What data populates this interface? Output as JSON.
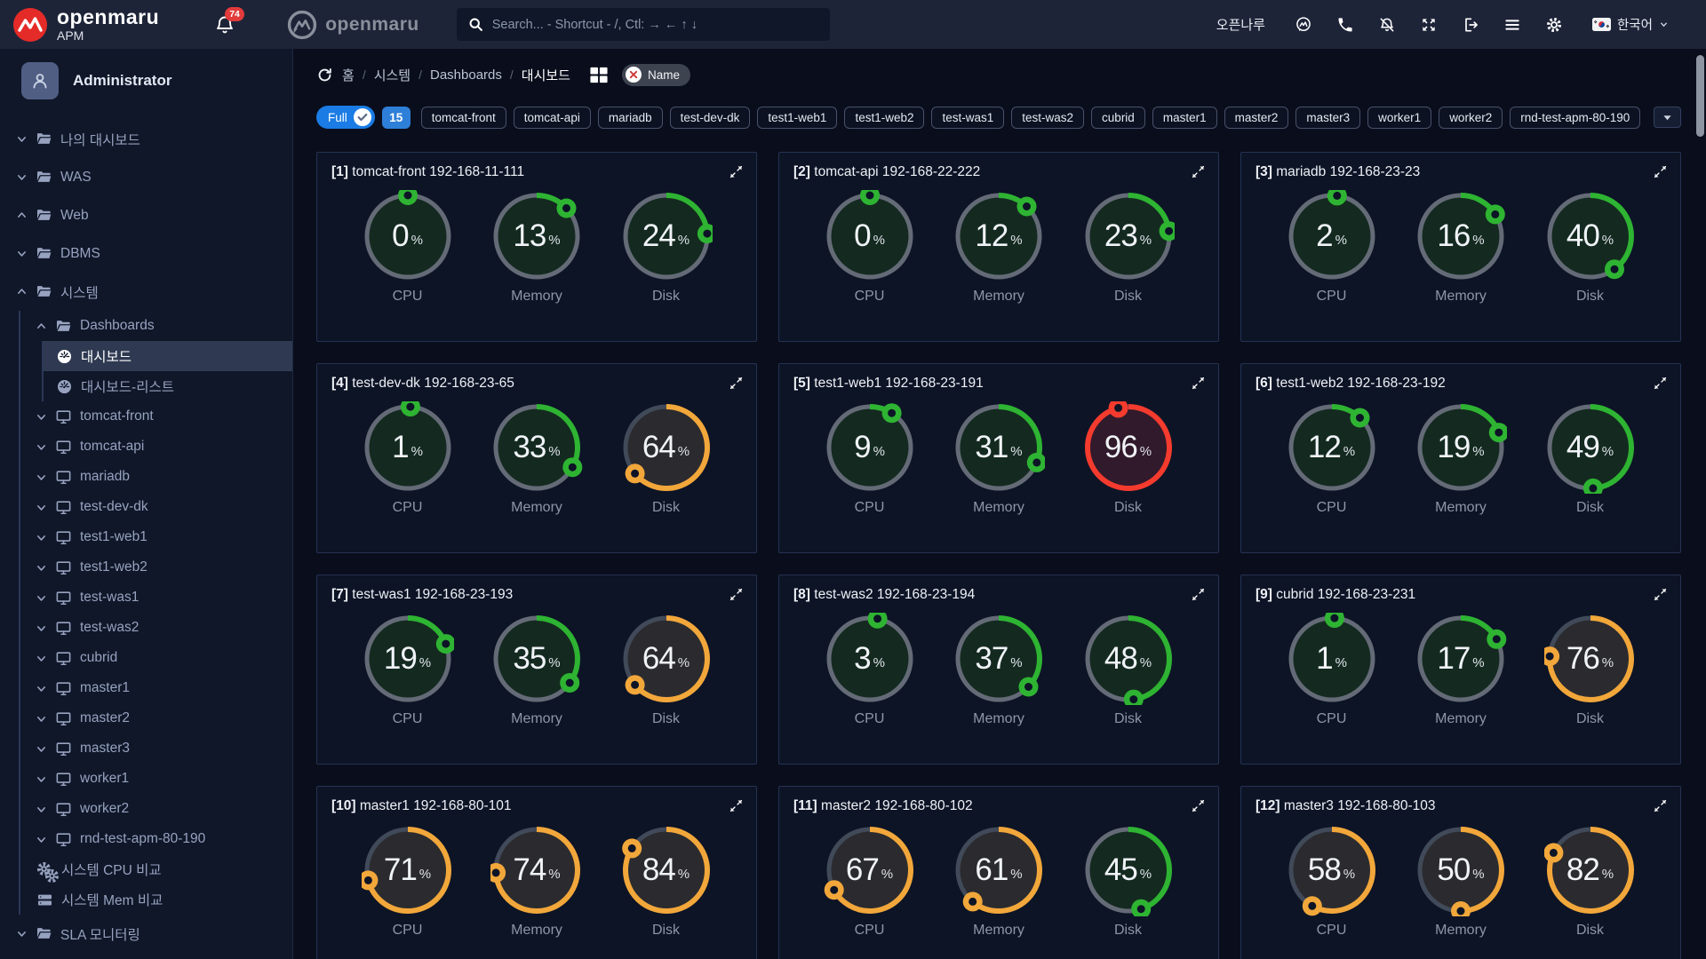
{
  "header": {
    "logo_title": "openmaru",
    "logo_subtitle": "APM",
    "notification_count": "74",
    "secondary_logo": "openmaru",
    "search_placeholder": "Search... - Shortcut - /, Ctl: → ← ↑ ↓",
    "account_name": "오픈나루",
    "language": "한국어",
    "icon_names": [
      "monitor-chat-icon",
      "phone-icon",
      "notifications-off-icon",
      "fullscreen-icon",
      "logout-icon",
      "menu-icon",
      "settings-icon"
    ]
  },
  "sidebar": {
    "user_name": "Administrator",
    "tree": [
      {
        "label": "나의 대시보드",
        "icon": "folder",
        "chevron": "down",
        "level": 0
      },
      {
        "label": "WAS",
        "icon": "folder",
        "chevron": "down",
        "level": 0
      },
      {
        "label": "Web",
        "icon": "folder",
        "chevron": "up",
        "level": 0
      },
      {
        "label": "DBMS",
        "icon": "folder",
        "chevron": "down",
        "level": 0
      },
      {
        "label": "시스템",
        "icon": "folder",
        "chevron": "up",
        "level": 0
      },
      {
        "label": "Dashboards",
        "icon": "folder",
        "chevron": "up",
        "level": 1,
        "guide": 1
      },
      {
        "label": "대시보드",
        "icon": "gauge",
        "level": 2,
        "guide": 2,
        "selected": true
      },
      {
        "label": "대시보드-리스트",
        "icon": "gauge",
        "level": 2,
        "guide": 2
      },
      {
        "label": "tomcat-front",
        "icon": "monitor",
        "chevron": "down",
        "level": 1,
        "guide": 1
      },
      {
        "label": "tomcat-api",
        "icon": "monitor",
        "chevron": "down",
        "level": 1,
        "guide": 1
      },
      {
        "label": "mariadb",
        "icon": "monitor",
        "chevron": "down",
        "level": 1,
        "guide": 1
      },
      {
        "label": "test-dev-dk",
        "icon": "monitor",
        "chevron": "down",
        "level": 1,
        "guide": 1
      },
      {
        "label": "test1-web1",
        "icon": "monitor",
        "chevron": "down",
        "level": 1,
        "guide": 1
      },
      {
        "label": "test1-web2",
        "icon": "monitor",
        "chevron": "down",
        "level": 1,
        "guide": 1
      },
      {
        "label": "test-was1",
        "icon": "monitor",
        "chevron": "down",
        "level": 1,
        "guide": 1
      },
      {
        "label": "test-was2",
        "icon": "monitor",
        "chevron": "down",
        "level": 1,
        "guide": 1
      },
      {
        "label": "cubrid",
        "icon": "monitor",
        "chevron": "down",
        "level": 1,
        "guide": 1
      },
      {
        "label": "master1",
        "icon": "monitor",
        "chevron": "down",
        "level": 1,
        "guide": 1
      },
      {
        "label": "master2",
        "icon": "monitor",
        "chevron": "down",
        "level": 1,
        "guide": 1
      },
      {
        "label": "master3",
        "icon": "monitor",
        "chevron": "down",
        "level": 1,
        "guide": 1
      },
      {
        "label": "worker1",
        "icon": "monitor",
        "chevron": "down",
        "level": 1,
        "guide": 1
      },
      {
        "label": "worker2",
        "icon": "monitor",
        "chevron": "down",
        "level": 1,
        "guide": 1
      },
      {
        "label": "rnd-test-apm-80-190",
        "icon": "monitor",
        "chevron": "down",
        "level": 1,
        "guide": 1
      },
      {
        "label": "시스템 CPU 비교",
        "icon": "gears",
        "level": 1,
        "guide": 1
      },
      {
        "label": "시스템 Mem 비교",
        "icon": "memory",
        "level": 1,
        "guide": 1
      },
      {
        "label": "SLA 모니터링",
        "icon": "folder",
        "chevron": "down",
        "level": 0
      }
    ]
  },
  "breadcrumb": {
    "items": [
      "홈",
      "시스템",
      "Dashboards",
      "대시보드"
    ],
    "tag_label": "Name"
  },
  "filter": {
    "full_label": "Full",
    "count": "15",
    "tags": [
      "tomcat-front",
      "tomcat-api",
      "mariadb",
      "test-dev-dk",
      "test1-web1",
      "test1-web2",
      "test-was1",
      "test-was2",
      "cubrid",
      "master1",
      "master2",
      "master3",
      "worker1",
      "worker2",
      "rnd-test-apm-80-190"
    ]
  },
  "gauge_labels": [
    "CPU",
    "Memory",
    "Disk"
  ],
  "cards": [
    {
      "num": "1",
      "host": "tomcat-front 192-168-11-111",
      "values": [
        0,
        13,
        24
      ]
    },
    {
      "num": "2",
      "host": "tomcat-api 192-168-22-222",
      "values": [
        0,
        12,
        23
      ]
    },
    {
      "num": "3",
      "host": "mariadb 192-168-23-23",
      "values": [
        2,
        16,
        40
      ]
    },
    {
      "num": "4",
      "host": "test-dev-dk 192-168-23-65",
      "values": [
        1,
        33,
        64
      ]
    },
    {
      "num": "5",
      "host": "test1-web1 192-168-23-191",
      "values": [
        9,
        31,
        96
      ]
    },
    {
      "num": "6",
      "host": "test1-web2 192-168-23-192",
      "values": [
        12,
        19,
        49
      ]
    },
    {
      "num": "7",
      "host": "test-was1 192-168-23-193",
      "values": [
        19,
        35,
        64
      ]
    },
    {
      "num": "8",
      "host": "test-was2 192-168-23-194",
      "values": [
        3,
        37,
        48
      ]
    },
    {
      "num": "9",
      "host": "cubrid 192-168-23-231",
      "values": [
        1,
        17,
        76
      ]
    },
    {
      "num": "10",
      "host": "master1 192-168-80-101",
      "values": [
        71,
        74,
        84
      ]
    },
    {
      "num": "11",
      "host": "master2 192-168-80-102",
      "values": [
        67,
        61,
        45
      ]
    },
    {
      "num": "12",
      "host": "master3 192-168-80-103",
      "values": [
        58,
        50,
        82
      ]
    }
  ],
  "thresholds": {
    "warn": 50,
    "crit": 90
  },
  "colors": {
    "ok": "#2eb432",
    "warn": "#f2a73b",
    "crit": "#f43b2e",
    "ok_fill": "#142a20",
    "warn_fill": "#2b2b2f",
    "crit_fill": "#311a2b",
    "ok_track": "#646b77",
    "warn_track": "#414a59",
    "crit_track": "#414a59",
    "accent_blue": "#1a7ce4",
    "badge_red": "#e23b3b"
  }
}
